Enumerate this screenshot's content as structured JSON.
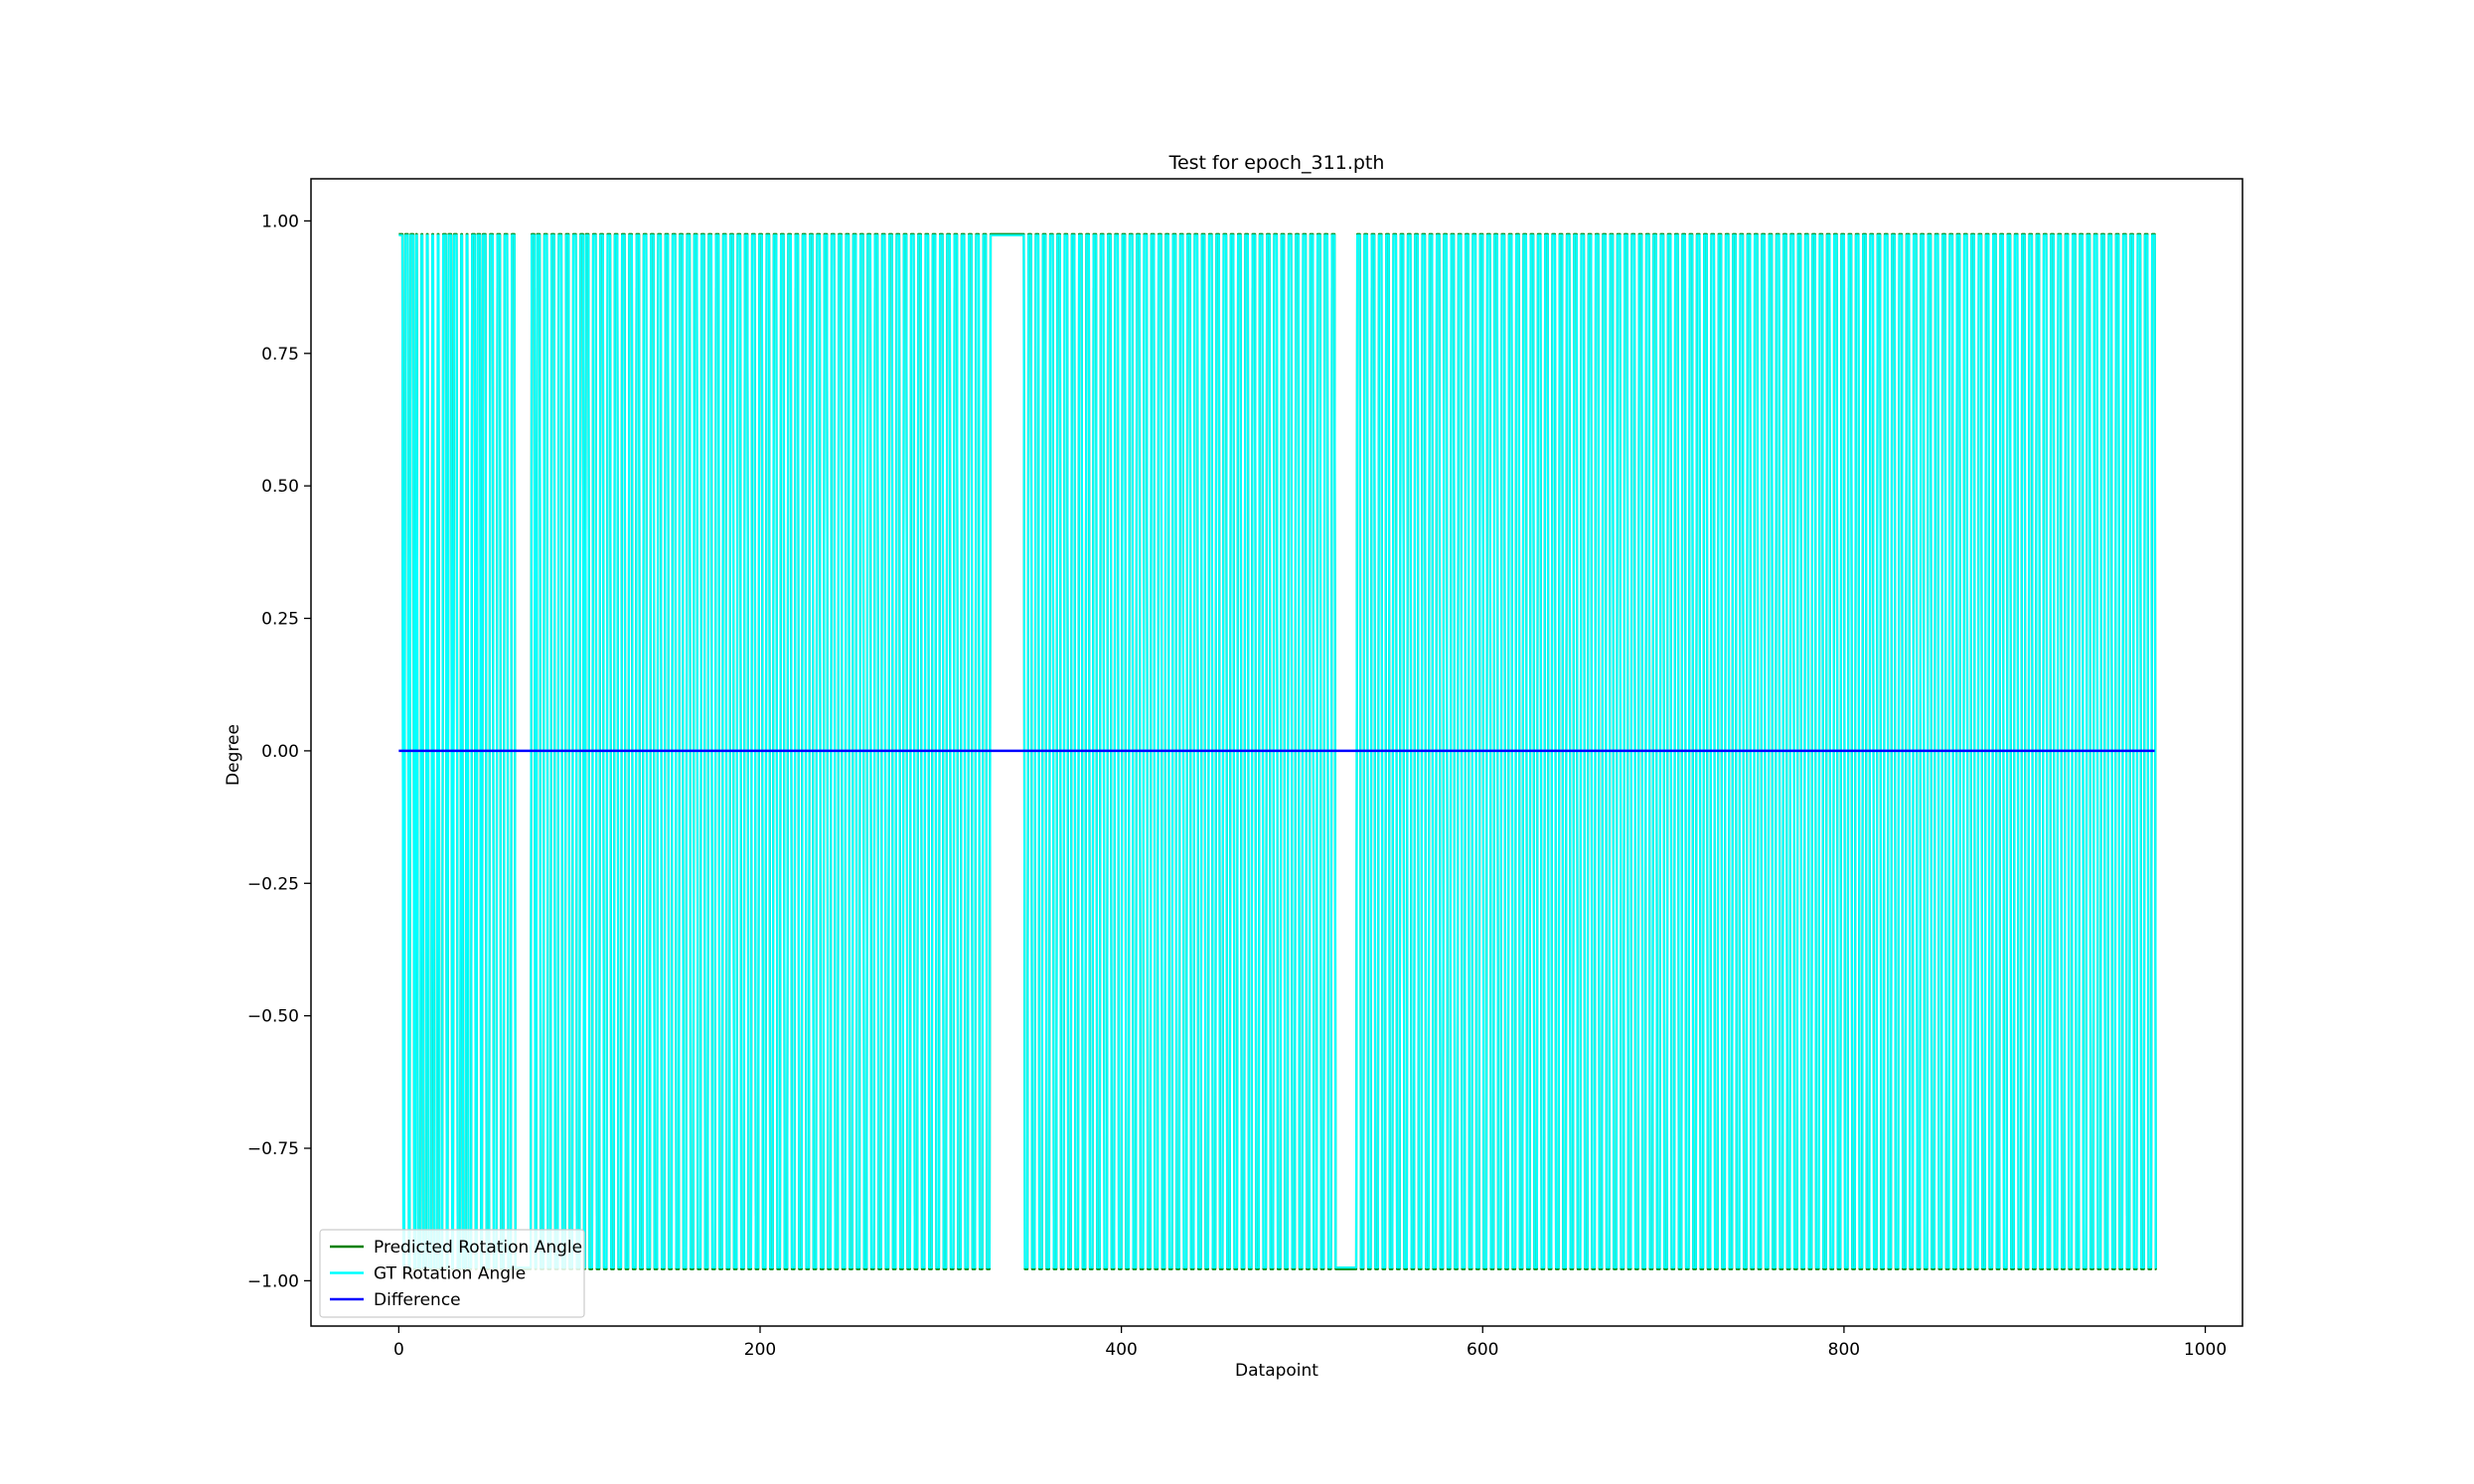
{
  "chart_data": {
    "type": "line",
    "title": "Test for epoch_311.pth",
    "xlabel": "Datapoint",
    "ylabel": "Degree",
    "xlim": [
      -48.6,
      1020.6
    ],
    "ylim": [
      -1.0855,
      1.0795
    ],
    "x_ticks": [
      0,
      200,
      400,
      600,
      800,
      1000
    ],
    "x_tick_labels": [
      "0",
      "200",
      "400",
      "600",
      "800",
      "1000"
    ],
    "y_ticks": [
      1.0,
      0.75,
      0.5,
      0.25,
      0.0,
      -0.25,
      -0.5,
      -0.75,
      -1.0
    ],
    "y_tick_labels": [
      "1.00",
      "0.75",
      "0.50",
      "0.25",
      "0.00",
      "−0.25",
      "−0.50",
      "−0.75",
      "−1.00"
    ],
    "grid": false,
    "legend_position": "lower-left",
    "num_points": 973,
    "series": [
      {
        "name": "Predicted Rotation Angle",
        "color": "#008000",
        "levels": [
          0.975,
          -0.978
        ],
        "switch_points": [
          0,
          2,
          3,
          5,
          6,
          8,
          9,
          10,
          12,
          13,
          15,
          16,
          18,
          19,
          21,
          22,
          24,
          26,
          27,
          29,
          30,
          32,
          34,
          35,
          37,
          38,
          40,
          42,
          43,
          45,
          46,
          48,
          50,
          52,
          54,
          56,
          58,
          60,
          62,
          64,
          73,
          75,
          76,
          78,
          80,
          82,
          84,
          86,
          88,
          90,
          92,
          94,
          96,
          98,
          100,
          102,
          103,
          105,
          107,
          109,
          111,
          113,
          115,
          117,
          119,
          121,
          123,
          125,
          127,
          129,
          131,
          133,
          135,
          137,
          139,
          141,
          143,
          145,
          147,
          149,
          151,
          153,
          155,
          157,
          159,
          161,
          163,
          165,
          167,
          169,
          171,
          173,
          175,
          177,
          179,
          181,
          183,
          185,
          187,
          189,
          191,
          193,
          195,
          197,
          199,
          201,
          203,
          205,
          207,
          209,
          211,
          213,
          215,
          217,
          219,
          221,
          223,
          225,
          227,
          229,
          231,
          233,
          235,
          237,
          239,
          241,
          243,
          245,
          247,
          249,
          251,
          253,
          255,
          257,
          259,
          261,
          263,
          265,
          267,
          269,
          271,
          273,
          275,
          277,
          279,
          281,
          283,
          285,
          287,
          289,
          291,
          293,
          295,
          297,
          299,
          301,
          303,
          305,
          307,
          309,
          311,
          313,
          315,
          317,
          319,
          321,
          323,
          325,
          327,
          346,
          348,
          350,
          352,
          354,
          356,
          358,
          360,
          362,
          364,
          366,
          368,
          370,
          372,
          374,
          376,
          378,
          380,
          382,
          384,
          386,
          388,
          390,
          392,
          394,
          396,
          398,
          400,
          402,
          404,
          406,
          408,
          410,
          412,
          414,
          416,
          418,
          420,
          422,
          424,
          426,
          428,
          430,
          432,
          434,
          436,
          438,
          440,
          442,
          444,
          446,
          448,
          450,
          452,
          454,
          456,
          458,
          460,
          462,
          464,
          466,
          468,
          470,
          472,
          474,
          476,
          478,
          480,
          482,
          484,
          486,
          488,
          490,
          492,
          494,
          496,
          498,
          500,
          502,
          504,
          506,
          508,
          510,
          512,
          514,
          516,
          518,
          530,
          532,
          534,
          536,
          538,
          540,
          542,
          544,
          546,
          548,
          550,
          552,
          554,
          556,
          558,
          560,
          562,
          564,
          566,
          568,
          570,
          572,
          574,
          576,
          578,
          580,
          582,
          584,
          586,
          588,
          590,
          592,
          594,
          596,
          598,
          600,
          602,
          604,
          606,
          608,
          610,
          612,
          614,
          616,
          618,
          620,
          622,
          624,
          626,
          628,
          630,
          632,
          634,
          636,
          638,
          640,
          642,
          644,
          646,
          648,
          650,
          652,
          654,
          656,
          658,
          660,
          662,
          664,
          666,
          668,
          670,
          672,
          674,
          676,
          678,
          680,
          682,
          684,
          686,
          688,
          690,
          692,
          694,
          696,
          698,
          700,
          702,
          704,
          706,
          708,
          710,
          712,
          714,
          716,
          718,
          720,
          722,
          724,
          726,
          728,
          730,
          732,
          734,
          736,
          738,
          740,
          742,
          744,
          746,
          748,
          750,
          752,
          754,
          756,
          758,
          760,
          762,
          764,
          766,
          768,
          770,
          772,
          774,
          776,
          778,
          780,
          782,
          784,
          786,
          788,
          790,
          792,
          794,
          796,
          798,
          800,
          802,
          804,
          806,
          808,
          810,
          812,
          814,
          816,
          818,
          820,
          822,
          824,
          826,
          828,
          830,
          832,
          834,
          836,
          838,
          840,
          842,
          844,
          846,
          848,
          850,
          852,
          854,
          856,
          858,
          860,
          862,
          864,
          866,
          868,
          870,
          872,
          874,
          876,
          878,
          880,
          882,
          884,
          886,
          888,
          890,
          892,
          894,
          896,
          898,
          900,
          902,
          904,
          906,
          908,
          910,
          912,
          914,
          916,
          918,
          920,
          922,
          924,
          926,
          928,
          930,
          932,
          934,
          936,
          938,
          940,
          942,
          944,
          946,
          948,
          950,
          952,
          954,
          956,
          958,
          960,
          962,
          964,
          966,
          968,
          970,
          972
        ]
      },
      {
        "name": "GT Rotation Angle",
        "color": "#00ffff",
        "levels": [
          0.973,
          -0.975
        ],
        "switch_points": [
          0,
          2,
          3,
          5,
          6,
          8,
          9,
          10,
          12,
          13,
          15,
          16,
          18,
          19,
          21,
          22,
          24,
          26,
          27,
          29,
          30,
          32,
          34,
          35,
          37,
          38,
          40,
          42,
          43,
          45,
          46,
          48,
          50,
          52,
          54,
          56,
          58,
          60,
          62,
          64,
          73,
          75,
          76,
          78,
          80,
          82,
          84,
          86,
          88,
          90,
          92,
          94,
          96,
          98,
          100,
          102,
          103,
          105,
          107,
          109,
          111,
          113,
          115,
          117,
          119,
          121,
          123,
          125,
          127,
          129,
          131,
          133,
          135,
          137,
          139,
          141,
          143,
          145,
          147,
          149,
          151,
          153,
          155,
          157,
          159,
          161,
          163,
          165,
          167,
          169,
          171,
          173,
          175,
          177,
          179,
          181,
          183,
          185,
          187,
          189,
          191,
          193,
          195,
          197,
          199,
          201,
          203,
          205,
          207,
          209,
          211,
          213,
          215,
          217,
          219,
          221,
          223,
          225,
          227,
          229,
          231,
          233,
          235,
          237,
          239,
          241,
          243,
          245,
          247,
          249,
          251,
          253,
          255,
          257,
          259,
          261,
          263,
          265,
          267,
          269,
          271,
          273,
          275,
          277,
          279,
          281,
          283,
          285,
          287,
          289,
          291,
          293,
          295,
          297,
          299,
          301,
          303,
          305,
          307,
          309,
          311,
          313,
          315,
          317,
          319,
          321,
          323,
          325,
          327,
          346,
          348,
          350,
          352,
          354,
          356,
          358,
          360,
          362,
          364,
          366,
          368,
          370,
          372,
          374,
          376,
          378,
          380,
          382,
          384,
          386,
          388,
          390,
          392,
          394,
          396,
          398,
          400,
          402,
          404,
          406,
          408,
          410,
          412,
          414,
          416,
          418,
          420,
          422,
          424,
          426,
          428,
          430,
          432,
          434,
          436,
          438,
          440,
          442,
          444,
          446,
          448,
          450,
          452,
          454,
          456,
          458,
          460,
          462,
          464,
          466,
          468,
          470,
          472,
          474,
          476,
          478,
          480,
          482,
          484,
          486,
          488,
          490,
          492,
          494,
          496,
          498,
          500,
          502,
          504,
          506,
          508,
          510,
          512,
          514,
          516,
          518,
          530,
          532,
          534,
          536,
          538,
          540,
          542,
          544,
          546,
          548,
          550,
          552,
          554,
          556,
          558,
          560,
          562,
          564,
          566,
          568,
          570,
          572,
          574,
          576,
          578,
          580,
          582,
          584,
          586,
          588,
          590,
          592,
          594,
          596,
          598,
          600,
          602,
          604,
          606,
          608,
          610,
          612,
          614,
          616,
          618,
          620,
          622,
          624,
          626,
          628,
          630,
          632,
          634,
          636,
          638,
          640,
          642,
          644,
          646,
          648,
          650,
          652,
          654,
          656,
          658,
          660,
          662,
          664,
          666,
          668,
          670,
          672,
          674,
          676,
          678,
          680,
          682,
          684,
          686,
          688,
          690,
          692,
          694,
          696,
          698,
          700,
          702,
          704,
          706,
          708,
          710,
          712,
          714,
          716,
          718,
          720,
          722,
          724,
          726,
          728,
          730,
          732,
          734,
          736,
          738,
          740,
          742,
          744,
          746,
          748,
          750,
          752,
          754,
          756,
          758,
          760,
          762,
          764,
          766,
          768,
          770,
          772,
          774,
          776,
          778,
          780,
          782,
          784,
          786,
          788,
          790,
          792,
          794,
          796,
          798,
          800,
          802,
          804,
          806,
          808,
          810,
          812,
          814,
          816,
          818,
          820,
          822,
          824,
          826,
          828,
          830,
          832,
          834,
          836,
          838,
          840,
          842,
          844,
          846,
          848,
          850,
          852,
          854,
          856,
          858,
          860,
          862,
          864,
          866,
          868,
          870,
          872,
          874,
          876,
          878,
          880,
          882,
          884,
          886,
          888,
          890,
          892,
          894,
          896,
          898,
          900,
          902,
          904,
          906,
          908,
          910,
          912,
          914,
          916,
          918,
          920,
          922,
          924,
          926,
          928,
          930,
          932,
          934,
          936,
          938,
          940,
          942,
          944,
          946,
          948,
          950,
          952,
          954,
          956,
          958,
          960,
          962,
          964,
          966,
          968,
          970,
          972
        ]
      },
      {
        "name": "Difference",
        "color": "#0000ff",
        "constant_value": 0.0
      }
    ]
  }
}
